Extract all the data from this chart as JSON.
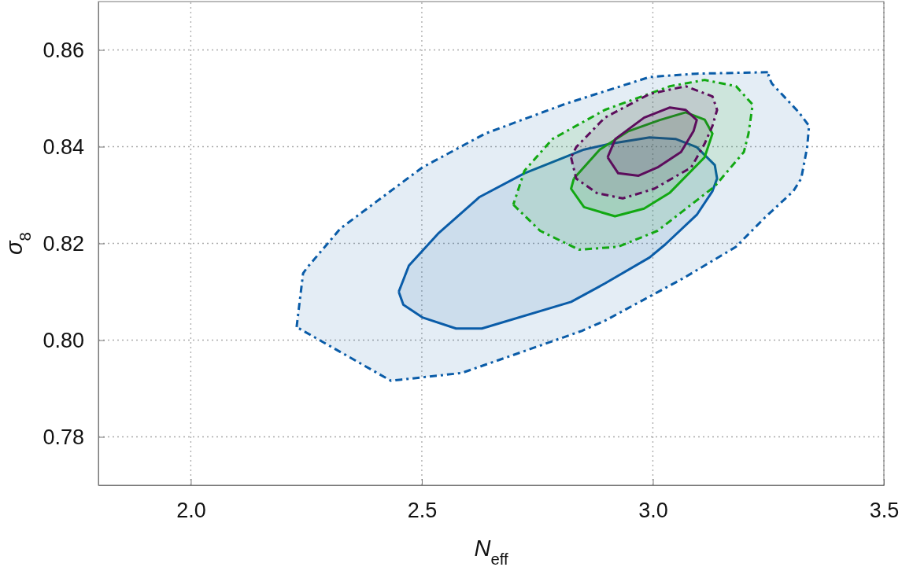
{
  "chart_data": {
    "type": "area",
    "xlabel": "N$_{eff}$",
    "ylabel": "σ$_{8}$",
    "xlim": [
      1.8,
      3.5
    ],
    "ylim": [
      0.77,
      0.87
    ],
    "xticks": [
      {
        "value": 2,
        "label": "2.0"
      },
      {
        "value": 2.5,
        "label": "2.5"
      },
      {
        "value": 3,
        "label": "3.0"
      },
      {
        "value": 3.5,
        "label": "3.5"
      }
    ],
    "yticks": [
      0.78,
      {
        "value": 0.8,
        "label": "0.80"
      },
      0.82,
      0.84,
      0.86
    ],
    "grid": true,
    "marker": "none",
    "series": [
      {
        "color": "#0a5ca8",
        "line_style": "dashed",
        "x": [
          2.229,
          2.243,
          2.251,
          2.324,
          2.501,
          2.637,
          2.812,
          2.993,
          3.095,
          3.253,
          3.25,
          3.258,
          3.316,
          3.338,
          3.334,
          3.321,
          3.304,
          3.241,
          3.18,
          3.066,
          2.981,
          2.896,
          2.846,
          2.715,
          2.586,
          2.433,
          2.229
        ],
        "values": [
          0.8027,
          0.8138,
          0.8149,
          0.8231,
          0.8357,
          0.8427,
          0.8489,
          0.8544,
          0.8551,
          0.8554,
          0.8546,
          0.853,
          0.8471,
          0.8443,
          0.8399,
          0.8334,
          0.8308,
          0.8252,
          0.8193,
          0.8128,
          0.8084,
          0.804,
          0.8019,
          0.7975,
          0.7932,
          0.7916,
          0.8027
        ]
      },
      {
        "color": "#0a5ca8",
        "line_style": "solid",
        "x": [
          2.45,
          2.472,
          2.535,
          2.625,
          2.722,
          2.851,
          2.908,
          2.993,
          3.049,
          3.095,
          3.134,
          3.139,
          3.129,
          3.095,
          3.027,
          2.993,
          2.896,
          2.823,
          2.63,
          2.574,
          2.501,
          2.46,
          2.45
        ],
        "values": [
          0.81,
          0.8154,
          0.822,
          0.8296,
          0.8345,
          0.8394,
          0.8406,
          0.8419,
          0.8416,
          0.8399,
          0.8362,
          0.8334,
          0.8308,
          0.8259,
          0.8198,
          0.8171,
          0.8117,
          0.8079,
          0.8024,
          0.8024,
          0.8047,
          0.8073,
          0.81
        ]
      },
      {
        "color": "#12a812",
        "line_style": "dashed",
        "x": [
          2.698,
          2.756,
          2.84,
          2.925,
          3.01,
          3.134,
          3.197,
          3.207,
          3.216,
          3.18,
          3.112,
          3.037,
          2.896,
          2.783,
          2.722,
          2.698
        ],
        "values": [
          0.828,
          0.8226,
          0.8187,
          0.8193,
          0.8226,
          0.8318,
          0.8389,
          0.8427,
          0.8487,
          0.8525,
          0.8538,
          0.8525,
          0.8476,
          0.8416,
          0.835,
          0.828
        ]
      },
      {
        "color": "#12a812",
        "line_style": "solid",
        "x": [
          2.829,
          2.823,
          2.851,
          2.918,
          2.981,
          3.037,
          3.112,
          3.129,
          3.112,
          3.071,
          3.015,
          2.947,
          2.885,
          2.829
        ],
        "values": [
          0.8334,
          0.8313,
          0.8275,
          0.8256,
          0.8272,
          0.8305,
          0.8378,
          0.8427,
          0.8456,
          0.8471,
          0.8455,
          0.8432,
          0.8394,
          0.8334
        ]
      },
      {
        "color": "#5c0d5c",
        "line_style": "dashed",
        "x": [
          2.823,
          2.834,
          2.879,
          2.935,
          3.003,
          3.083,
          3.112,
          3.129,
          3.139,
          3.129,
          3.071,
          2.993,
          2.896,
          2.834,
          2.823
        ],
        "values": [
          0.8378,
          0.8334,
          0.8304,
          0.8293,
          0.8313,
          0.8357,
          0.8406,
          0.8443,
          0.8476,
          0.8504,
          0.8525,
          0.8509,
          0.846,
          0.8399,
          0.8378
        ]
      },
      {
        "color": "#5c0d5c",
        "line_style": "solid",
        "x": [
          2.902,
          2.925,
          2.969,
          3.01,
          3.061,
          3.088,
          3.095,
          3.071,
          3.037,
          2.981,
          2.919,
          2.902
        ],
        "values": [
          0.8378,
          0.8345,
          0.834,
          0.8357,
          0.8389,
          0.8432,
          0.8455,
          0.8476,
          0.8481,
          0.846,
          0.8416,
          0.8378
        ]
      }
    ]
  }
}
